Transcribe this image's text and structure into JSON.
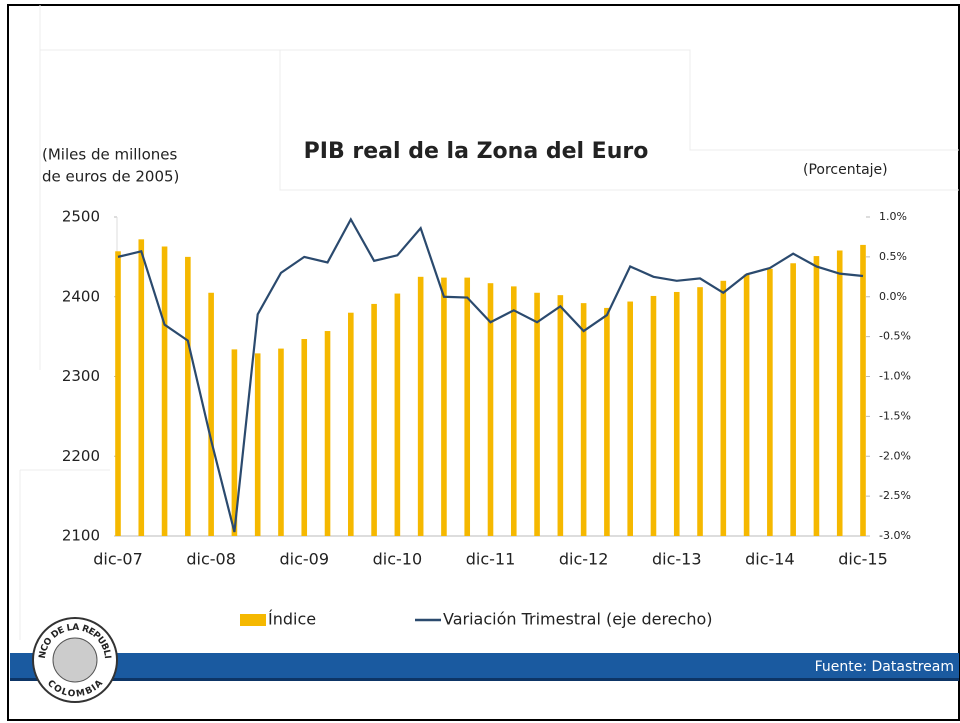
{
  "chart_data": {
    "type": "bar_line",
    "title": "PIB real de la Zona del Euro",
    "y_label": [
      "(Miles de millones",
      "de euros de 2005)"
    ],
    "y2_label": "(Porcentaje)",
    "categories": [
      "dic-07",
      null,
      null,
      null,
      "dic-08",
      null,
      null,
      null,
      "dic-09",
      null,
      null,
      null,
      "dic-10",
      null,
      null,
      null,
      "dic-11",
      null,
      null,
      null,
      "dic-12",
      null,
      null,
      null,
      "dic-13",
      null,
      null,
      null,
      "dic-14",
      null,
      null,
      null,
      "dic-15"
    ],
    "series": [
      {
        "name": "Índice",
        "type": "bar",
        "color": "#f5b800",
        "values": [
          2457,
          2472,
          2463,
          2450,
          2405,
          2334,
          2329,
          2335,
          2347,
          2357,
          2380,
          2391,
          2404,
          2425,
          2424,
          2424,
          2417,
          2413,
          2405,
          2402,
          2392,
          2386,
          2394,
          2401,
          2406,
          2412,
          2420,
          2428,
          2435,
          2442,
          2451,
          2458,
          2465
        ]
      },
      {
        "name": "Variación Trimestral (eje derecho)",
        "type": "line",
        "axis": "y2",
        "color": "#2b4a6e",
        "values": [
          0.5,
          0.57,
          -0.35,
          -0.55,
          -1.8,
          -2.95,
          -0.22,
          0.3,
          0.5,
          0.43,
          0.97,
          0.45,
          0.52,
          0.86,
          0.0,
          -0.01,
          -0.32,
          -0.17,
          -0.32,
          -0.12,
          -0.43,
          -0.23,
          0.38,
          0.25,
          0.2,
          0.23,
          0.05,
          0.28,
          0.36,
          0.54,
          0.38,
          0.29,
          0.26
        ]
      }
    ],
    "ylim": [
      2100,
      2500
    ],
    "yticks": [
      2100,
      2200,
      2300,
      2400,
      2500
    ],
    "y2lim": [
      -3,
      1
    ],
    "y2ticks": [
      {
        "value": -3,
        "label": "-3.0%"
      },
      {
        "value": -2.5,
        "label": "-2.5%"
      },
      {
        "value": -2,
        "label": "-2.0%"
      },
      {
        "value": -1.5,
        "label": "-1.5%"
      },
      {
        "value": -1,
        "label": "-1.0%"
      },
      {
        "value": -0.5,
        "label": "-0.5%"
      },
      {
        "value": 0,
        "label": "0.0%"
      },
      {
        "value": 0.5,
        "label": "0.5%"
      },
      {
        "value": 1,
        "label": "1.0%"
      }
    ],
    "legend": "bottom",
    "source": "Fuente: Datastream",
    "logo": {
      "top": "BANCO DE LA REPUBLICA",
      "bottom": "COLOMBIA"
    }
  }
}
